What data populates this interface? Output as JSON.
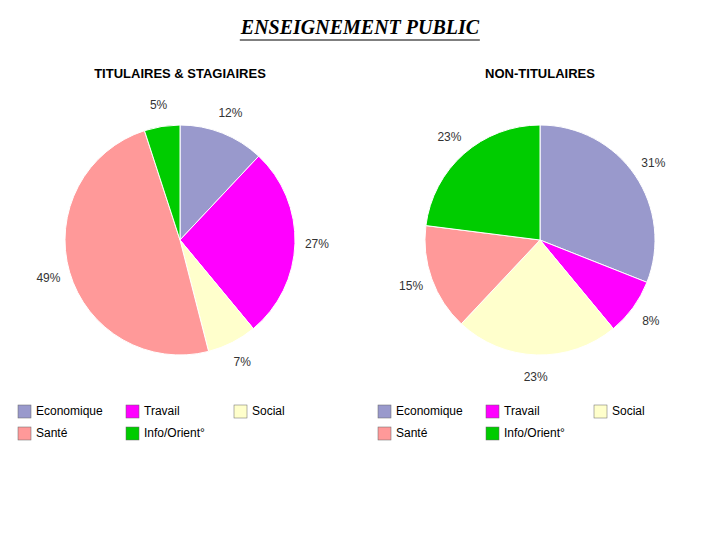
{
  "title": "ENSEIGNEMENT PUBLIC",
  "chart_data": [
    {
      "type": "pie",
      "title": "TITULAIRES & STAGIAIRES",
      "categories": [
        "Economique",
        "Travail",
        "Social",
        "Santé",
        "Info/Orient°"
      ],
      "values": [
        12,
        27,
        7,
        49,
        5
      ],
      "value_labels": [
        "12%",
        "27%",
        "7%",
        "49%",
        "5%"
      ],
      "colors": [
        "#9999CC",
        "#FF00FF",
        "#FFFFCC",
        "#FF9999",
        "#00CC00"
      ],
      "data_labels": true,
      "legend": "bottom"
    },
    {
      "type": "pie",
      "title": "NON-TITULAIRES",
      "categories": [
        "Economique",
        "Travail",
        "Social",
        "Santé",
        "Info/Orient°"
      ],
      "values": [
        31,
        8,
        23,
        15,
        23
      ],
      "value_labels": [
        "31%",
        "8%",
        "23%",
        "15%",
        "23%"
      ],
      "colors": [
        "#9999CC",
        "#FF00FF",
        "#FFFFCC",
        "#FF9999",
        "#00CC00"
      ],
      "data_labels": true,
      "legend": "bottom"
    }
  ]
}
